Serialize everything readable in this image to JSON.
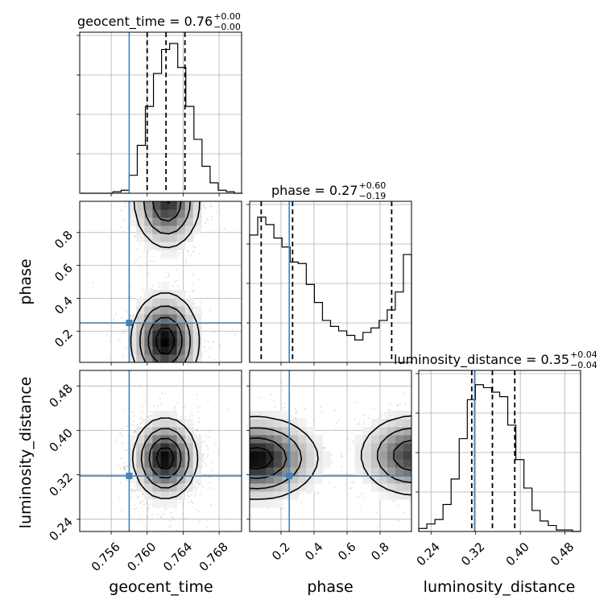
{
  "chart_data": {
    "type": "corner",
    "parameters": [
      "geocent_time",
      "phase",
      "luminosity_distance"
    ],
    "injection": {
      "geocent_time": 0.758,
      "phase": 0.25,
      "luminosity_distance": 0.318
    },
    "colors": {
      "injection": "#4682b4",
      "contour": "#000000",
      "grid": "#b0b0b0",
      "hist": "#000000"
    },
    "grid": true,
    "titles": [
      {
        "name": "geocent_time = 0.76",
        "sup": "+0.00",
        "sub": "−0.00"
      },
      {
        "name": "phase = 0.27",
        "sup": "+0.60",
        "sub": "−0.19"
      },
      {
        "name": "luminosity_distance = 0.35",
        "sup": "+0.04",
        "sub": "−0.04"
      }
    ],
    "axes": {
      "geocent_time": {
        "range": [
          0.7525,
          0.7705
        ],
        "ticks": [
          0.756,
          0.76,
          0.764,
          0.768
        ],
        "tick_labels": [
          "0.756",
          "0.760",
          "0.764",
          "0.768"
        ]
      },
      "phase": {
        "range": [
          0.01,
          0.99
        ],
        "ticks": [
          0.2,
          0.4,
          0.6,
          0.8
        ],
        "tick_labels": [
          "0.2",
          "0.4",
          "0.6",
          "0.8"
        ]
      },
      "luminosity_distance": {
        "range": [
          0.218,
          0.508
        ],
        "ticks": [
          0.24,
          0.32,
          0.4,
          0.48
        ],
        "tick_labels": [
          "0.24",
          "0.32",
          "0.40",
          "0.48"
        ]
      }
    },
    "diagonal": [
      {
        "param": "geocent_time",
        "quantiles": [
          0.76,
          0.7621,
          0.7642
        ],
        "bin_edges": [
          0.7526,
          0.7535,
          0.7544,
          0.7553,
          0.7562,
          0.7571,
          0.758,
          0.7589,
          0.7598,
          0.7607,
          0.7616,
          0.7625,
          0.7634,
          0.7643,
          0.7652,
          0.7661,
          0.767,
          0.7679,
          0.7688,
          0.7697,
          0.7706
        ],
        "counts": [
          0,
          0,
          0,
          0,
          0.01,
          0.02,
          0.12,
          0.32,
          0.58,
          0.8,
          0.96,
          1.0,
          0.84,
          0.58,
          0.36,
          0.18,
          0.07,
          0.02,
          0.01,
          0
        ]
      },
      {
        "param": "phase",
        "quantiles": [
          0.08,
          0.27,
          0.87
        ],
        "bin_edges": [
          0.01,
          0.059,
          0.108,
          0.157,
          0.206,
          0.255,
          0.304,
          0.353,
          0.402,
          0.451,
          0.5,
          0.549,
          0.598,
          0.647,
          0.696,
          0.745,
          0.794,
          0.843,
          0.892,
          0.941,
          0.99
        ],
        "counts": [
          0.85,
          0.97,
          0.92,
          0.83,
          0.77,
          0.67,
          0.66,
          0.52,
          0.4,
          0.28,
          0.24,
          0.21,
          0.18,
          0.15,
          0.2,
          0.23,
          0.28,
          0.35,
          0.47,
          0.72
        ]
      },
      {
        "param": "luminosity_distance",
        "quantiles": [
          0.313,
          0.35,
          0.39
        ],
        "bin_edges": [
          0.218,
          0.2325,
          0.247,
          0.2615,
          0.276,
          0.2905,
          0.305,
          0.3195,
          0.334,
          0.3485,
          0.363,
          0.3775,
          0.392,
          0.4065,
          0.421,
          0.4355,
          0.45,
          0.4645,
          0.479,
          0.4935,
          0.508
        ],
        "counts": [
          0.02,
          0.05,
          0.08,
          0.18,
          0.35,
          0.62,
          0.88,
          0.98,
          0.96,
          0.93,
          0.9,
          0.71,
          0.48,
          0.29,
          0.14,
          0.07,
          0.04,
          0.01,
          0.01,
          0
        ]
      }
    ],
    "joint": [
      {
        "x": "geocent_time",
        "y": "phase",
        "modes": [
          {
            "mx": 0.762,
            "my": 0.14,
            "sx": 0.0018,
            "sy": 0.14,
            "w": 1.0
          },
          {
            "mx": 0.7622,
            "my": 0.99,
            "sx": 0.0018,
            "sy": 0.14,
            "w": 0.85
          }
        ]
      },
      {
        "x": "geocent_time",
        "y": "luminosity_distance",
        "modes": [
          {
            "mx": 0.762,
            "my": 0.35,
            "sx": 0.0017,
            "sy": 0.035,
            "w": 1.0
          }
        ]
      },
      {
        "x": "phase",
        "y": "luminosity_distance",
        "modes": [
          {
            "mx": 0.05,
            "my": 0.35,
            "sx": 0.18,
            "sy": 0.036,
            "w": 1.0
          },
          {
            "mx": 1.0,
            "my": 0.355,
            "sx": 0.16,
            "sy": 0.036,
            "w": 0.8
          }
        ]
      }
    ]
  }
}
